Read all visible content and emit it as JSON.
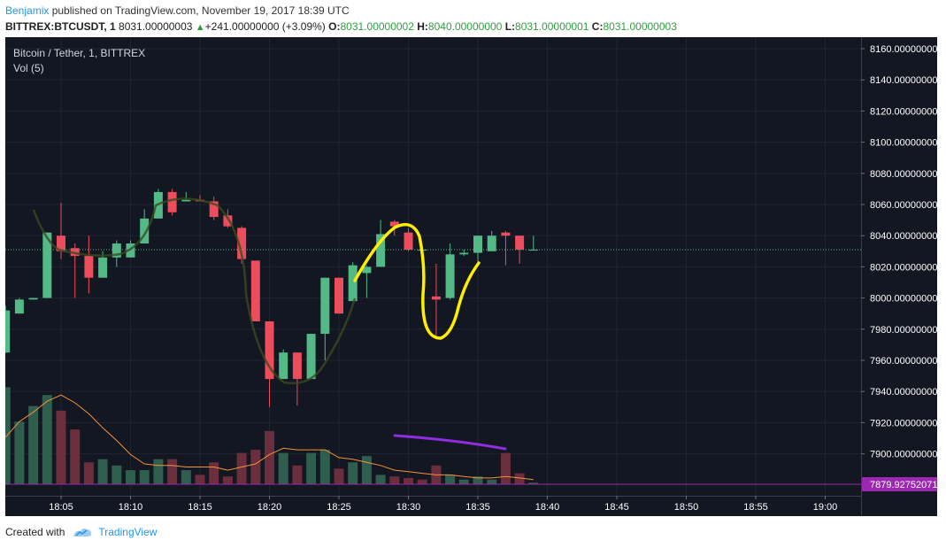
{
  "header": {
    "author": "Benjamix",
    "published_text": "published on TradingView.com, November 19, 2017 18:39 UTC",
    "symbol": "BITTREX:BTCUSDT, 1",
    "last": "8031.00000003",
    "change": "+241.00000000 (+3.09%)",
    "o_label": "O:",
    "o_val": "8031.00000002",
    "h_label": "H:",
    "h_val": "8040.00000000",
    "l_label": "L:",
    "l_val": "8031.00000001",
    "c_label": "C:",
    "c_val": "8031.00000003"
  },
  "legend": {
    "title": "Bitcoin / Tether, 1, BITTREX",
    "volume": "Vol (5)"
  },
  "footer": {
    "created_with": "Created with",
    "brand": "TradingView"
  },
  "colors": {
    "background": "#131722",
    "up": "#53b987",
    "down": "#eb4d5c",
    "vol_up": "#2f5d4e",
    "vol_down": "#6b2e3c",
    "grid": "#1f2430",
    "axis_text": "#ffffff",
    "ma_line": "#f5913a",
    "price_line": "#53b987",
    "purple": "#9c27b0",
    "yellow": "#ffee00"
  },
  "chart_data": {
    "type": "candlestick",
    "x_ticks": [
      "18:05",
      "18:10",
      "18:15",
      "18:20",
      "18:25",
      "18:30",
      "18:35",
      "18:40",
      "18:45",
      "18:50",
      "18:55",
      "19:00"
    ],
    "y_ticks": [
      "8160.00000000",
      "8140.00000000",
      "8120.00000000",
      "8100.00000000",
      "8080.00000000",
      "8060.00000000",
      "8040.00000000",
      "8020.00000000",
      "8000.00000000",
      "7980.00000000",
      "7960.00000000",
      "7940.00000000",
      "7920.00000000",
      "7900.00000000"
    ],
    "ylim": [
      7880,
      8165
    ],
    "x_start": "18:01",
    "current_price": 8031,
    "price_label": "7879.92752071",
    "candles": [
      {
        "t": "18:01",
        "o": 7965,
        "h": 7995,
        "l": 7965,
        "c": 7992
      },
      {
        "t": "18:02",
        "o": 7990,
        "h": 8000,
        "l": 7990,
        "c": 7999
      },
      {
        "t": "18:03",
        "o": 7999,
        "h": 8000,
        "l": 7999,
        "c": 8000
      },
      {
        "t": "18:04",
        "o": 8000,
        "h": 8042,
        "l": 8000,
        "c": 8042
      },
      {
        "t": "18:05",
        "o": 8040,
        "h": 8061,
        "l": 8025,
        "c": 8030
      },
      {
        "t": "18:06",
        "o": 8032,
        "h": 8035,
        "l": 8000,
        "c": 8027
      },
      {
        "t": "18:07",
        "o": 8027,
        "h": 8040,
        "l": 8003,
        "c": 8013
      },
      {
        "t": "18:08",
        "o": 8013,
        "h": 8030,
        "l": 8013,
        "c": 8026
      },
      {
        "t": "18:09",
        "o": 8026,
        "h": 8037,
        "l": 8020,
        "c": 8035
      },
      {
        "t": "18:10",
        "o": 8026,
        "h": 8037,
        "l": 8026,
        "c": 8035
      },
      {
        "t": "18:11",
        "o": 8035,
        "h": 8057,
        "l": 8035,
        "c": 8051
      },
      {
        "t": "18:12",
        "o": 8051,
        "h": 8070,
        "l": 8051,
        "c": 8068
      },
      {
        "t": "18:13",
        "o": 8068,
        "h": 8070,
        "l": 8053,
        "c": 8055
      },
      {
        "t": "18:14",
        "o": 8062,
        "h": 8068,
        "l": 8062,
        "c": 8063
      },
      {
        "t": "18:15",
        "o": 8063,
        "h": 8066,
        "l": 8062,
        "c": 8062
      },
      {
        "t": "18:16",
        "o": 8062,
        "h": 8065,
        "l": 8050,
        "c": 8052
      },
      {
        "t": "18:17",
        "o": 8053,
        "h": 8057,
        "l": 8045,
        "c": 8046
      },
      {
        "t": "18:18",
        "o": 8045,
        "h": 8046,
        "l": 8022,
        "c": 8025
      },
      {
        "t": "18:19",
        "o": 8024,
        "h": 8024,
        "l": 7985,
        "c": 7985
      },
      {
        "t": "18:20",
        "o": 7985,
        "h": 7985,
        "l": 7930,
        "c": 7948
      },
      {
        "t": "18:21",
        "o": 7948,
        "h": 7967,
        "l": 7948,
        "c": 7965
      },
      {
        "t": "18:22",
        "o": 7965,
        "h": 7965,
        "l": 7931,
        "c": 7948
      },
      {
        "t": "18:23",
        "o": 7948,
        "h": 7977,
        "l": 7948,
        "c": 7977
      },
      {
        "t": "18:24",
        "o": 7977,
        "h": 8013,
        "l": 7960,
        "c": 8013
      },
      {
        "t": "18:25",
        "o": 8013,
        "h": 8013,
        "l": 7990,
        "c": 7990
      },
      {
        "t": "18:26",
        "o": 7998,
        "h": 8023,
        "l": 7998,
        "c": 8021
      },
      {
        "t": "18:27",
        "o": 8016,
        "h": 8021,
        "l": 8000,
        "c": 8020
      },
      {
        "t": "18:28",
        "o": 8020,
        "h": 8050,
        "l": 8020,
        "c": 8041
      },
      {
        "t": "18:29",
        "o": 8049,
        "h": 8050,
        "l": 8040,
        "c": 8046
      },
      {
        "t": "18:30",
        "o": 8042,
        "h": 8045,
        "l": 8030,
        "c": 8031
      },
      {
        "t": "18:31",
        "o": 8031,
        "h": 8031,
        "l": 8031,
        "c": 8031
      },
      {
        "t": "18:32",
        "o": 8001,
        "h": 8022,
        "l": 7975,
        "c": 7999
      },
      {
        "t": "18:33",
        "o": 8000,
        "h": 8035,
        "l": 7999,
        "c": 8028
      },
      {
        "t": "18:34",
        "o": 8028,
        "h": 8031,
        "l": 8027,
        "c": 8029
      },
      {
        "t": "18:35",
        "o": 8029,
        "h": 8040,
        "l": 8022,
        "c": 8040
      },
      {
        "t": "18:36",
        "o": 8030,
        "h": 8043,
        "l": 8030,
        "c": 8040
      },
      {
        "t": "18:37",
        "o": 8042,
        "h": 8043,
        "l": 8021,
        "c": 8040
      },
      {
        "t": "18:38",
        "o": 8040,
        "h": 8040,
        "l": 8022,
        "c": 8031
      },
      {
        "t": "18:39",
        "o": 8031,
        "h": 8040,
        "l": 8031,
        "c": 8031
      }
    ],
    "volume": [
      {
        "t": "18:01",
        "v": 62,
        "up": true
      },
      {
        "t": "18:02",
        "v": 40,
        "up": true
      },
      {
        "t": "18:03",
        "v": 50,
        "up": true
      },
      {
        "t": "18:04",
        "v": 57,
        "up": true
      },
      {
        "t": "18:05",
        "v": 47,
        "up": false
      },
      {
        "t": "18:06",
        "v": 35,
        "up": false
      },
      {
        "t": "18:07",
        "v": 14,
        "up": false
      },
      {
        "t": "18:08",
        "v": 16,
        "up": true
      },
      {
        "t": "18:09",
        "v": 12,
        "up": true
      },
      {
        "t": "18:10",
        "v": 9,
        "up": true
      },
      {
        "t": "18:11",
        "v": 9,
        "up": true
      },
      {
        "t": "18:12",
        "v": 16,
        "up": true
      },
      {
        "t": "18:13",
        "v": 16,
        "up": false
      },
      {
        "t": "18:14",
        "v": 9,
        "up": true
      },
      {
        "t": "18:15",
        "v": 6,
        "up": false
      },
      {
        "t": "18:16",
        "v": 14,
        "up": false
      },
      {
        "t": "18:17",
        "v": 5,
        "up": false
      },
      {
        "t": "18:18",
        "v": 20,
        "up": false
      },
      {
        "t": "18:19",
        "v": 22,
        "up": false
      },
      {
        "t": "18:20",
        "v": 34,
        "up": false
      },
      {
        "t": "18:21",
        "v": 20,
        "up": true
      },
      {
        "t": "18:22",
        "v": 12,
        "up": false
      },
      {
        "t": "18:23",
        "v": 20,
        "up": true
      },
      {
        "t": "18:24",
        "v": 22,
        "up": true
      },
      {
        "t": "18:25",
        "v": 10,
        "up": false
      },
      {
        "t": "18:26",
        "v": 14,
        "up": true
      },
      {
        "t": "18:27",
        "v": 18,
        "up": true
      },
      {
        "t": "18:28",
        "v": 6,
        "up": true
      },
      {
        "t": "18:29",
        "v": 5,
        "up": false
      },
      {
        "t": "18:30",
        "v": 4,
        "up": false
      },
      {
        "t": "18:31",
        "v": 3,
        "up": false
      },
      {
        "t": "18:32",
        "v": 12,
        "up": false
      },
      {
        "t": "18:33",
        "v": 6,
        "up": true
      },
      {
        "t": "18:34",
        "v": 3,
        "up": true
      },
      {
        "t": "18:35",
        "v": 5,
        "up": true
      },
      {
        "t": "18:36",
        "v": 3,
        "up": true
      },
      {
        "t": "18:37",
        "v": 20,
        "up": false
      },
      {
        "t": "18:38",
        "v": 7,
        "up": false
      },
      {
        "t": "18:39",
        "v": 1,
        "up": true
      }
    ],
    "volume_ma": [
      30,
      40,
      46,
      53,
      57,
      52,
      45,
      36,
      28,
      19,
      13,
      12,
      12,
      11,
      11,
      11,
      9,
      11,
      13,
      19,
      23,
      22,
      22,
      22,
      17,
      16,
      14,
      12,
      9,
      8,
      7,
      6,
      6,
      5,
      4,
      4,
      5,
      4,
      3
    ],
    "volume_max": 65,
    "grid": true
  }
}
